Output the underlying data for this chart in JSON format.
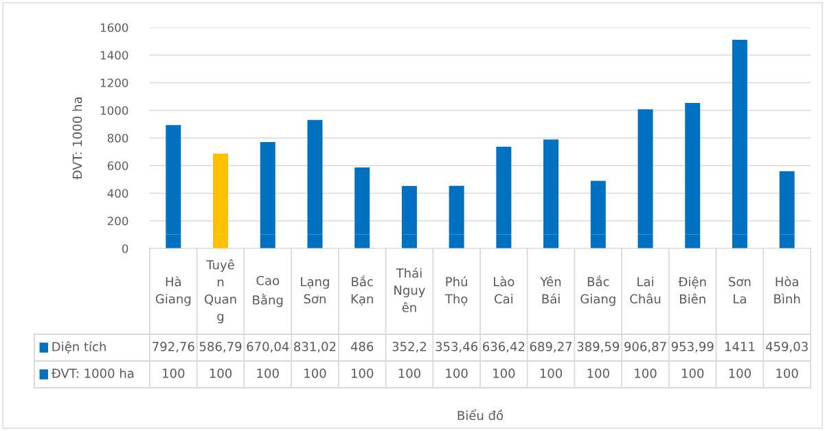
{
  "chart_data": {
    "type": "bar",
    "stacked": true,
    "ylabel": "ĐVT: 1000 ha",
    "annotations": [
      "Biểu đồ"
    ],
    "legend": "bottom left",
    "categories": [
      "Hà\nGiang",
      "Tuyê\nn\nQuan\ng",
      "Cao\nBằng",
      "Lạng\nSơn",
      "Bắc\nKạn",
      "Thái\nNguy\nên",
      "Phú\nThọ",
      "Lào\nCai",
      "Yên\nBái",
      "Bắc\nGiang",
      "Lai\nChâu",
      "Điện\nBiên",
      "Sơn\nLa",
      "Hòa\nBình"
    ],
    "series": [
      {
        "name": "ĐVT: 1000 ha",
        "color": "#0070c0",
        "colors": [
          "#0070c0",
          "#ffc000",
          "#0070c0",
          "#0070c0",
          "#0070c0",
          "#0070c0",
          "#0070c0",
          "#0070c0",
          "#0070c0",
          "#0070c0",
          "#0070c0",
          "#0070c0",
          "#0070c0",
          "#0070c0"
        ],
        "values": [
          100,
          100,
          100,
          100,
          100,
          100,
          100,
          100,
          100,
          100,
          100,
          100,
          100,
          100
        ],
        "value_labels": [
          "100",
          "100",
          "100",
          "100",
          "100",
          "100",
          "100",
          "100",
          "100",
          "100",
          "100",
          "100",
          "100",
          "100"
        ]
      },
      {
        "name": "Diện tích",
        "color": "#0070c0",
        "colors": [
          "#0070c0",
          "#ffc000",
          "#0070c0",
          "#0070c0",
          "#0070c0",
          "#0070c0",
          "#0070c0",
          "#0070c0",
          "#0070c0",
          "#0070c0",
          "#0070c0",
          "#0070c0",
          "#0070c0",
          "#0070c0"
        ],
        "values": [
          792.76,
          586.79,
          670.04,
          831.02,
          486,
          352.2,
          353.46,
          636.42,
          689.27,
          389.59,
          906.87,
          953.99,
          1411,
          459.03
        ],
        "value_labels": [
          "792,76",
          "586,79",
          "670,04",
          "831,02",
          "486",
          "352,2",
          "353,46",
          "636,42",
          "689,27",
          "389,59",
          "906,87",
          "953,99",
          "1411",
          "459,03"
        ]
      }
    ],
    "ylim": [
      0,
      1600
    ],
    "yticks": [
      0,
      200,
      400,
      600,
      800,
      1000,
      1200,
      1400,
      1600
    ],
    "grid": "y"
  }
}
